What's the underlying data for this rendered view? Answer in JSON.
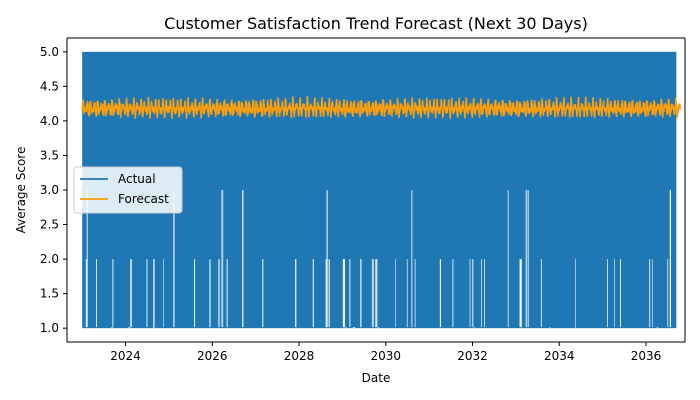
{
  "chart_data": {
    "type": "line",
    "title": "Customer Satisfaction Trend Forecast (Next 30 Days)",
    "xlabel": "Date",
    "ylabel": "Average Score",
    "xlim": [
      2022.65,
      2036.9
    ],
    "ylim": [
      0.8,
      5.2
    ],
    "x_ticks": [
      "2024",
      "2026",
      "2028",
      "2030",
      "2032",
      "2034",
      "2036"
    ],
    "y_ticks": [
      "1.0",
      "1.5",
      "2.0",
      "2.5",
      "3.0",
      "3.5",
      "4.0",
      "4.5",
      "5.0"
    ],
    "grid": false,
    "legend": {
      "placement": "center-left",
      "entries": [
        "Actual",
        "Forecast"
      ]
    },
    "series": [
      {
        "name": "Actual",
        "color": "#1f77b4",
        "x_range": [
          2023.0,
          2036.7
        ],
        "min": 1.0,
        "max": 5.0,
        "description_values": [
          1.0,
          2.0,
          3.0,
          4.0,
          5.0
        ]
      },
      {
        "name": "Forecast",
        "color": "#ff9f0a",
        "x_range": [
          2023.0,
          2036.8
        ],
        "center": 4.2,
        "amplitude": 0.18,
        "min": 3.95,
        "max": 4.38
      }
    ]
  }
}
